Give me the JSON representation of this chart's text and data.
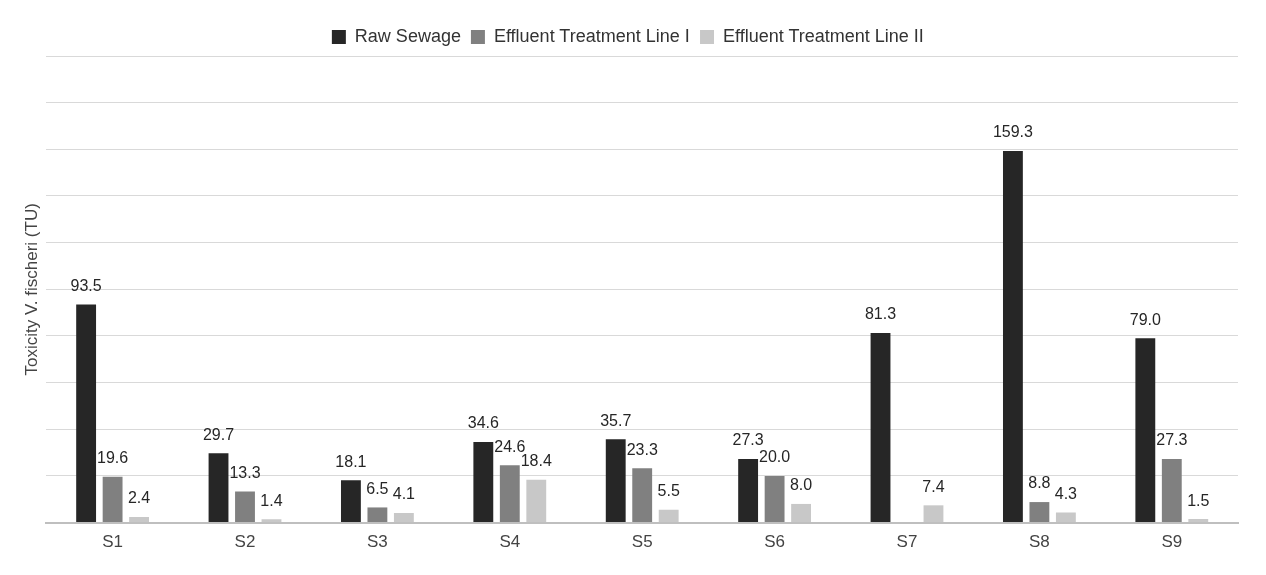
{
  "chart_data": {
    "type": "bar",
    "ylabel": "Toxicity V. fischeri (TU)",
    "categories": [
      "S1",
      "S2",
      "S3",
      "S4",
      "S5",
      "S6",
      "S7",
      "S8",
      "S9"
    ],
    "series": [
      {
        "name": "Raw Sewage",
        "color": "#262626",
        "values": [
          93.5,
          29.7,
          18.1,
          34.6,
          35.7,
          27.3,
          81.3,
          159.3,
          79.0
        ],
        "value_labels": [
          "93.5",
          "29.7",
          "18.1",
          "34.6",
          "35.7",
          "27.3",
          "81.3",
          "159.3",
          "79.0"
        ]
      },
      {
        "name": "Effluent Treatment Line I",
        "color": "#808080",
        "values": [
          19.6,
          13.3,
          6.5,
          24.6,
          23.3,
          20.0,
          null,
          8.8,
          27.3
        ],
        "value_labels": [
          "19.6",
          "13.3",
          "6.5",
          "24.6",
          "23.3",
          "20.0",
          null,
          "8.8",
          "27.3"
        ]
      },
      {
        "name": "Effluent Treatment Line II",
        "color": "#c8c8c8",
        "values": [
          2.4,
          1.4,
          4.1,
          18.4,
          5.5,
          8.0,
          7.4,
          4.3,
          1.5
        ],
        "value_labels": [
          "2.4",
          "1.4",
          "4.1",
          "18.4",
          "5.5",
          "8.0",
          "7.4",
          "4.3",
          "1.5"
        ]
      }
    ],
    "ylim": [
      0,
      200
    ],
    "yticks": [
      {
        "value": 0,
        "label": null
      },
      {
        "value": 20,
        "label": null
      },
      {
        "value": 40,
        "label": null
      },
      {
        "value": 60,
        "label": null
      },
      {
        "value": 80,
        "label": null
      },
      {
        "value": 100,
        "label": null
      },
      {
        "value": 120,
        "label": null
      },
      {
        "value": 140,
        "label": null
      },
      {
        "value": 160,
        "label": null
      },
      {
        "value": 180,
        "label": null
      },
      {
        "value": 200,
        "label": null
      }
    ],
    "grid": "y",
    "legend": "top",
    "tick_labels": "x"
  }
}
